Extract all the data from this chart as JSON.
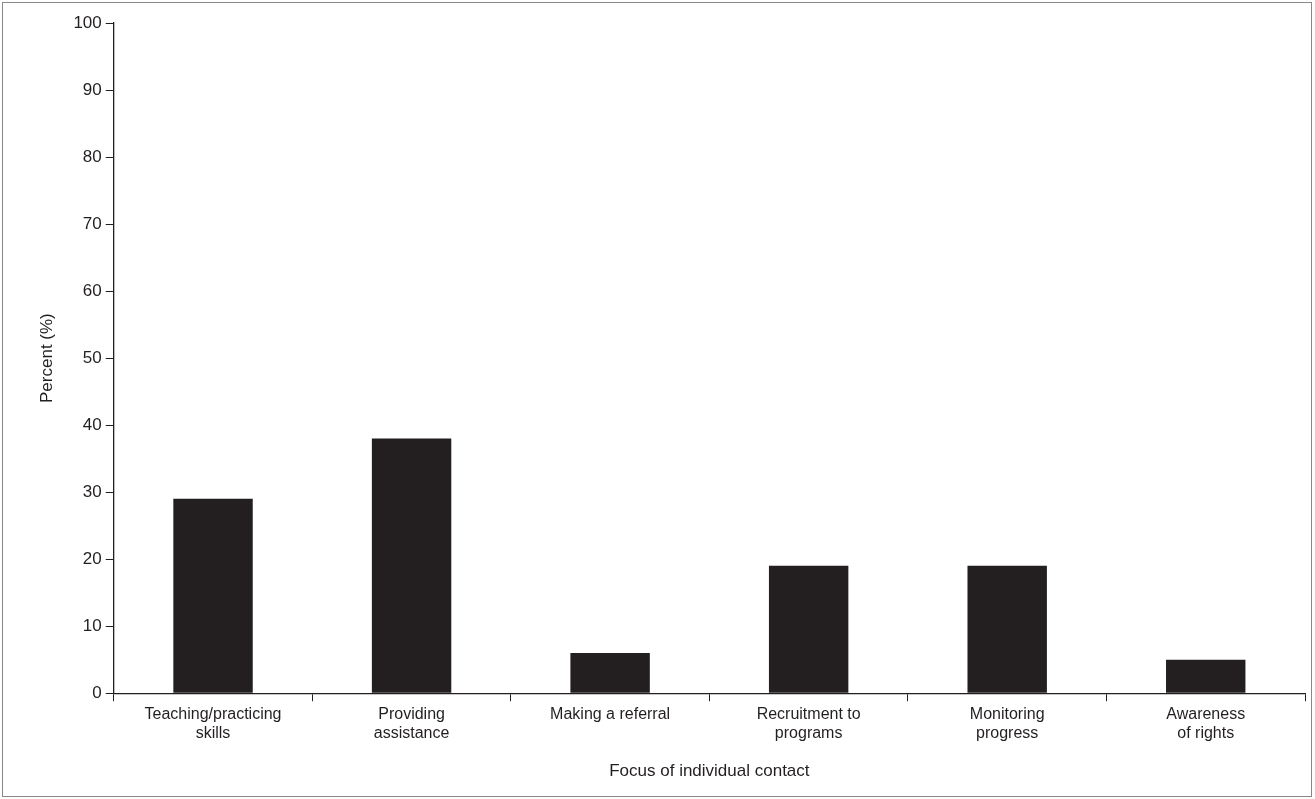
{
  "chart_data": {
    "type": "bar",
    "categories": [
      "Teaching/practicing\nskills",
      "Providing\nassistance",
      "Making a referral",
      "Recruitment to\nprograms",
      "Monitoring\nprogress",
      "Awareness\nof rights"
    ],
    "values": [
      29,
      38,
      6,
      19,
      19,
      5
    ],
    "color": "#231f20",
    "xlabel": "Focus of individual contact",
    "ylabel": "Percent (%)",
    "ylim": [
      0,
      100
    ],
    "yticks": [
      0,
      10,
      20,
      30,
      40,
      50,
      60,
      70,
      80,
      90,
      100
    ],
    "grid": false,
    "legend": false
  }
}
